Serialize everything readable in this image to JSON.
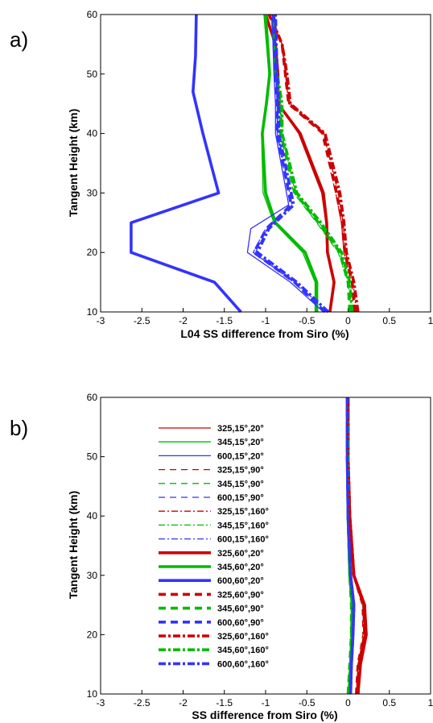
{
  "chart_data": [
    {
      "type": "line",
      "panel_label": "a)",
      "xlabel": "L04 SS difference from Siro (%)",
      "ylabel": "Tangent Height (km)",
      "xlim": [
        -3,
        1
      ],
      "ylim": [
        10,
        60
      ],
      "xticks": [
        "-3",
        "-2.5",
        "-2",
        "-1.5",
        "-1",
        "-0.5",
        "0",
        "0.5",
        "1"
      ],
      "yticks": [
        "10",
        "20",
        "30",
        "40",
        "50",
        "60"
      ],
      "legend": "none",
      "series": [
        {
          "color": "#cc0000",
          "style": "thin-solid",
          "x": [
            -0.22,
            -0.18,
            -0.26,
            -0.27,
            -0.32,
            -0.6,
            -0.85,
            -0.86,
            -0.88,
            -1.0
          ],
          "y": [
            10,
            15,
            20,
            25,
            30,
            40,
            45,
            50,
            55,
            60
          ]
        },
        {
          "color": "#cc0000",
          "style": "thin-dash",
          "x": [
            0.08,
            0.04,
            -0.05,
            -0.08,
            -0.15,
            -0.32,
            -0.72,
            -0.76,
            -0.8,
            -0.96
          ],
          "y": [
            10,
            15,
            20,
            25,
            30,
            40,
            45,
            50,
            55,
            60
          ]
        },
        {
          "color": "#cc0000",
          "style": "thin-dashdot",
          "x": [
            0.1,
            0.06,
            -0.03,
            -0.06,
            -0.12,
            -0.3,
            -0.7,
            -0.75,
            -0.8,
            -0.96
          ],
          "y": [
            10,
            15,
            20,
            25,
            30,
            40,
            45,
            50,
            55,
            60
          ]
        },
        {
          "color": "#cc0000",
          "style": "thick-solid",
          "x": [
            -0.22,
            -0.17,
            -0.25,
            -0.26,
            -0.3,
            -0.58,
            -0.85,
            -0.85,
            -0.88,
            -1.0
          ],
          "y": [
            10,
            15,
            20,
            25,
            30,
            40,
            45,
            50,
            55,
            60
          ]
        },
        {
          "color": "#cc0000",
          "style": "thick-dash",
          "x": [
            0.08,
            0.05,
            -0.04,
            -0.07,
            -0.14,
            -0.3,
            -0.72,
            -0.76,
            -0.8,
            -0.96
          ],
          "y": [
            10,
            15,
            20,
            25,
            30,
            40,
            45,
            50,
            55,
            60
          ]
        },
        {
          "color": "#cc0000",
          "style": "thick-dashdot",
          "x": [
            0.12,
            0.07,
            -0.02,
            -0.05,
            -0.1,
            -0.28,
            -0.7,
            -0.74,
            -0.8,
            -0.95
          ],
          "y": [
            10,
            15,
            20,
            25,
            30,
            40,
            45,
            50,
            55,
            60
          ]
        },
        {
          "color": "#00bb00",
          "style": "thin-solid",
          "x": [
            -0.4,
            -0.4,
            -0.55,
            -0.9,
            -1.03,
            -1.05,
            -1.0,
            -0.96,
            -1.02
          ],
          "y": [
            10,
            15,
            20,
            25,
            30,
            40,
            45,
            50,
            60
          ]
        },
        {
          "color": "#00bb00",
          "style": "thin-dash",
          "x": [
            0.02,
            0.0,
            -0.12,
            -0.38,
            -0.66,
            -0.82,
            -0.82,
            -0.88,
            -0.92
          ],
          "y": [
            10,
            15,
            20,
            25,
            30,
            40,
            45,
            50,
            60
          ]
        },
        {
          "color": "#00bb00",
          "style": "thin-dashdot",
          "x": [
            0.04,
            0.02,
            -0.1,
            -0.35,
            -0.64,
            -0.8,
            -0.81,
            -0.87,
            -0.9
          ],
          "y": [
            10,
            15,
            20,
            25,
            30,
            40,
            45,
            50,
            60
          ]
        },
        {
          "color": "#00bb00",
          "style": "thick-solid",
          "x": [
            -0.38,
            -0.38,
            -0.52,
            -0.88,
            -1.0,
            -1.04,
            -0.99,
            -0.95,
            -1.0
          ],
          "y": [
            10,
            15,
            20,
            25,
            30,
            40,
            45,
            50,
            60
          ]
        },
        {
          "color": "#00bb00",
          "style": "thick-dash",
          "x": [
            0.02,
            0.0,
            -0.1,
            -0.36,
            -0.64,
            -0.82,
            -0.82,
            -0.88,
            -0.92
          ],
          "y": [
            10,
            15,
            20,
            25,
            30,
            40,
            45,
            50,
            60
          ]
        },
        {
          "color": "#00bb00",
          "style": "thick-dashdot",
          "x": [
            0.05,
            0.02,
            -0.08,
            -0.33,
            -0.62,
            -0.8,
            -0.8,
            -0.86,
            -0.9
          ],
          "y": [
            10,
            15,
            20,
            25,
            30,
            40,
            45,
            50,
            60
          ]
        },
        {
          "color": "#3333ff",
          "style": "thin-solid",
          "x": [
            -0.3,
            -0.7,
            -1.22,
            -1.18,
            -0.72,
            -0.88,
            -0.88,
            -0.9,
            -0.92
          ],
          "y": [
            10,
            15,
            20,
            24,
            28,
            40,
            45,
            50,
            60
          ]
        },
        {
          "color": "#3333ff",
          "style": "thin-dash",
          "x": [
            -0.28,
            -0.66,
            -1.15,
            -1.0,
            -0.7,
            -0.86,
            -0.86,
            -0.88,
            -0.9
          ],
          "y": [
            10,
            15,
            20,
            24,
            28,
            40,
            45,
            50,
            60
          ]
        },
        {
          "color": "#3333ff",
          "style": "thin-dashdot",
          "x": [
            -0.25,
            -0.64,
            -1.12,
            -0.98,
            -0.68,
            -0.85,
            -0.85,
            -0.87,
            -0.89
          ],
          "y": [
            10,
            15,
            20,
            24,
            28,
            40,
            45,
            50,
            60
          ]
        },
        {
          "color": "#3333ff",
          "style": "thick-solid",
          "x": [
            -1.3,
            -1.62,
            -2.63,
            -2.63,
            -1.57,
            -1.76,
            -1.88,
            -1.85,
            -1.84
          ],
          "y": [
            10,
            15,
            20,
            25,
            30,
            40,
            47,
            53,
            60
          ]
        },
        {
          "color": "#3333ff",
          "style": "thick-dash",
          "x": [
            -0.28,
            -0.65,
            -1.14,
            -0.99,
            -0.69,
            -0.86,
            -0.86,
            -0.88,
            -0.9
          ],
          "y": [
            10,
            15,
            20,
            24,
            28,
            40,
            45,
            50,
            60
          ]
        },
        {
          "color": "#3333ff",
          "style": "thick-dashdot",
          "x": [
            -0.24,
            -0.62,
            -1.1,
            -0.96,
            -0.66,
            -0.84,
            -0.84,
            -0.86,
            -0.88
          ],
          "y": [
            10,
            15,
            20,
            24,
            28,
            40,
            45,
            50,
            60
          ]
        }
      ]
    },
    {
      "type": "line",
      "panel_label": "b)",
      "xlabel": "SS difference from Siro (%)",
      "ylabel": "Tangent Height (km)",
      "xlim": [
        -3,
        1
      ],
      "ylim": [
        10,
        60
      ],
      "xticks": [
        "-3",
        "-2.5",
        "-2",
        "-1.5",
        "-1",
        "-0.5",
        "0",
        "0.5",
        "1"
      ],
      "yticks": [
        "10",
        "20",
        "30",
        "40",
        "50",
        "60"
      ],
      "legend": "top-left",
      "series": [
        {
          "name": "325,15°,20°",
          "color": "#cc0000",
          "style": "thin-solid",
          "x": [
            0.1,
            0.12,
            0.2,
            0.18,
            0.06,
            0.02,
            0.0,
            0.0
          ],
          "y": [
            10,
            15,
            20,
            25,
            30,
            40,
            50,
            60
          ]
        },
        {
          "name": "345,15°,20°",
          "color": "#00bb00",
          "style": "thin-solid",
          "x": [
            0.0,
            0.02,
            0.04,
            0.04,
            0.02,
            0.0,
            0.0,
            -0.01
          ],
          "y": [
            10,
            15,
            20,
            25,
            30,
            40,
            50,
            60
          ]
        },
        {
          "name": "600,15°,20°",
          "color": "#3333ff",
          "style": "thin-solid",
          "x": [
            0.02,
            0.03,
            0.05,
            0.06,
            0.02,
            0.0,
            -0.01,
            -0.01
          ],
          "y": [
            10,
            15,
            20,
            25,
            30,
            40,
            50,
            60
          ]
        },
        {
          "name": "325,15°,90°",
          "color": "#cc0000",
          "style": "thin-dash",
          "x": [
            0.09,
            0.11,
            0.18,
            0.17,
            0.06,
            0.02,
            0.0,
            0.0
          ],
          "y": [
            10,
            15,
            20,
            25,
            30,
            40,
            50,
            60
          ]
        },
        {
          "name": "345,15°,90°",
          "color": "#00bb00",
          "style": "thin-dash",
          "x": [
            0.0,
            0.02,
            0.03,
            0.04,
            0.02,
            0.0,
            0.0,
            -0.01
          ],
          "y": [
            10,
            15,
            20,
            25,
            30,
            40,
            50,
            60
          ]
        },
        {
          "name": "600,15°,90°",
          "color": "#3333ff",
          "style": "thin-dash",
          "x": [
            0.02,
            0.03,
            0.05,
            0.05,
            0.02,
            0.0,
            -0.01,
            -0.01
          ],
          "y": [
            10,
            15,
            20,
            25,
            30,
            40,
            50,
            60
          ]
        },
        {
          "name": "325,15°,160°",
          "color": "#cc0000",
          "style": "thin-dashdot",
          "x": [
            0.1,
            0.12,
            0.19,
            0.18,
            0.06,
            0.02,
            0.0,
            0.0
          ],
          "y": [
            10,
            15,
            20,
            25,
            30,
            40,
            50,
            60
          ]
        },
        {
          "name": "345,15°,160°",
          "color": "#00bb00",
          "style": "thin-dashdot",
          "x": [
            0.0,
            0.02,
            0.04,
            0.04,
            0.02,
            0.0,
            0.0,
            -0.01
          ],
          "y": [
            10,
            15,
            20,
            25,
            30,
            40,
            50,
            60
          ]
        },
        {
          "name": "600,15°,160°",
          "color": "#3333ff",
          "style": "thin-dashdot",
          "x": [
            0.02,
            0.03,
            0.05,
            0.06,
            0.02,
            0.0,
            -0.01,
            -0.01
          ],
          "y": [
            10,
            15,
            20,
            25,
            30,
            40,
            50,
            60
          ]
        },
        {
          "name": "325,60°,20°",
          "color": "#cc0000",
          "style": "thick-solid",
          "x": [
            0.12,
            0.15,
            0.22,
            0.2,
            0.07,
            0.02,
            0.0,
            0.0
          ],
          "y": [
            10,
            15,
            20,
            25,
            30,
            40,
            50,
            60
          ]
        },
        {
          "name": "345,60°,20°",
          "color": "#00bb00",
          "style": "thick-solid",
          "x": [
            0.01,
            0.03,
            0.05,
            0.05,
            0.02,
            0.0,
            0.0,
            -0.01
          ],
          "y": [
            10,
            15,
            20,
            25,
            30,
            40,
            50,
            60
          ]
        },
        {
          "name": "600,60°,20°",
          "color": "#3333ff",
          "style": "thick-solid",
          "x": [
            0.03,
            0.04,
            0.06,
            0.07,
            0.03,
            0.0,
            -0.01,
            -0.01
          ],
          "y": [
            10,
            15,
            20,
            25,
            30,
            40,
            50,
            60
          ]
        },
        {
          "name": "325,60°,90°",
          "color": "#cc0000",
          "style": "thick-dash",
          "x": [
            0.11,
            0.14,
            0.2,
            0.19,
            0.07,
            0.02,
            0.0,
            0.0
          ],
          "y": [
            10,
            15,
            20,
            25,
            30,
            40,
            50,
            60
          ]
        },
        {
          "name": "345,60°,90°",
          "color": "#00bb00",
          "style": "thick-dash",
          "x": [
            0.0,
            0.02,
            0.04,
            0.04,
            0.02,
            0.0,
            0.0,
            -0.01
          ],
          "y": [
            10,
            15,
            20,
            25,
            30,
            40,
            50,
            60
          ]
        },
        {
          "name": "600,60°,90°",
          "color": "#3333ff",
          "style": "thick-dash",
          "x": [
            0.02,
            0.04,
            0.06,
            0.06,
            0.03,
            0.0,
            -0.01,
            -0.01
          ],
          "y": [
            10,
            15,
            20,
            25,
            30,
            40,
            50,
            60
          ]
        },
        {
          "name": "325,60°,160°",
          "color": "#cc0000",
          "style": "thick-dashdot",
          "x": [
            0.12,
            0.14,
            0.21,
            0.2,
            0.07,
            0.02,
            0.0,
            0.0
          ],
          "y": [
            10,
            15,
            20,
            25,
            30,
            40,
            50,
            60
          ]
        },
        {
          "name": "345,60°,160°",
          "color": "#00bb00",
          "style": "thick-dashdot",
          "x": [
            0.01,
            0.03,
            0.05,
            0.05,
            0.02,
            0.0,
            0.0,
            -0.01
          ],
          "y": [
            10,
            15,
            20,
            25,
            30,
            40,
            50,
            60
          ]
        },
        {
          "name": "600,60°,160°",
          "color": "#3333ff",
          "style": "thick-dashdot",
          "x": [
            0.03,
            0.04,
            0.06,
            0.07,
            0.03,
            0.0,
            -0.01,
            -0.01
          ],
          "y": [
            10,
            15,
            20,
            25,
            30,
            40,
            50,
            60
          ]
        }
      ]
    }
  ]
}
